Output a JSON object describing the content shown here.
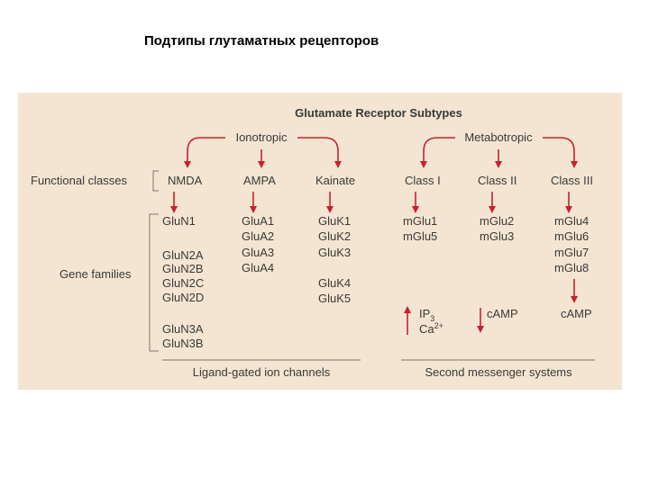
{
  "title": "Подтипы глутаматных рецепторов",
  "diagram": {
    "title": "Glutamate Receptor Subtypes",
    "groups": [
      "Ionotropic",
      "Metabotropic"
    ],
    "row_labels": [
      "Functional classes",
      "Gene families"
    ],
    "classes": [
      {
        "name": "NMDA",
        "genes": [
          "GluN1",
          "GluN2A",
          "GluN2B",
          "GluN2C",
          "GluN2D",
          "GluN3A",
          "GluN3B"
        ]
      },
      {
        "name": "AMPA",
        "genes": [
          "GluA1",
          "GluA2",
          "GluA3",
          "GluA4"
        ]
      },
      {
        "name": "Kainate",
        "genes": [
          "GluK1",
          "GluK2",
          "GluK3",
          "GluK4",
          "GluK5"
        ]
      },
      {
        "name": "Class I",
        "genes": [
          "mGlu1",
          "mGlu5"
        ]
      },
      {
        "name": "Class II",
        "genes": [
          "mGlu2",
          "mGlu3"
        ]
      },
      {
        "name": "Class III",
        "genes": [
          "mGlu4",
          "mGlu6",
          "mGlu7",
          "mGlu8"
        ]
      }
    ],
    "messengers": [
      {
        "text": "IP",
        "sub": "3"
      },
      {
        "text": "Ca",
        "sup": "2+"
      },
      {
        "text": "cAMP"
      },
      {
        "text": "cAMP"
      }
    ],
    "footers": [
      "Ligand-gated ion channels",
      "Second messenger systems"
    ]
  }
}
